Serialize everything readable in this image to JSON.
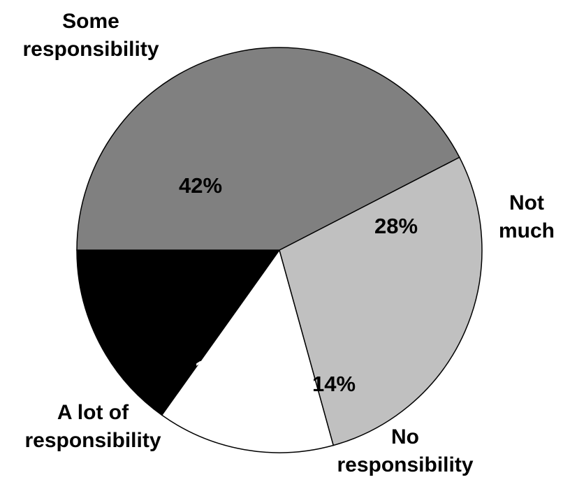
{
  "chart_data": {
    "type": "pie",
    "title": "",
    "start_angle_deg": 180,
    "direction": "counterclockwise",
    "slices": [
      {
        "label": [
          "A lot of",
          "responsibility"
        ],
        "value": 15,
        "display": "15%",
        "color": "#000000",
        "text_color": "#ffffff"
      },
      {
        "label": [
          "No",
          "responsibility"
        ],
        "value": 14,
        "display": "14%",
        "color": "#ffffff",
        "text_color": "#000000"
      },
      {
        "label": [
          "Not",
          "much"
        ],
        "value": 28,
        "display": "28%",
        "color": "#c0c0c0",
        "text_color": "#000000"
      },
      {
        "label": [
          "Some",
          "responsibility"
        ],
        "value": 42,
        "display": "42%",
        "color": "#808080",
        "text_color": "#000000"
      }
    ]
  }
}
